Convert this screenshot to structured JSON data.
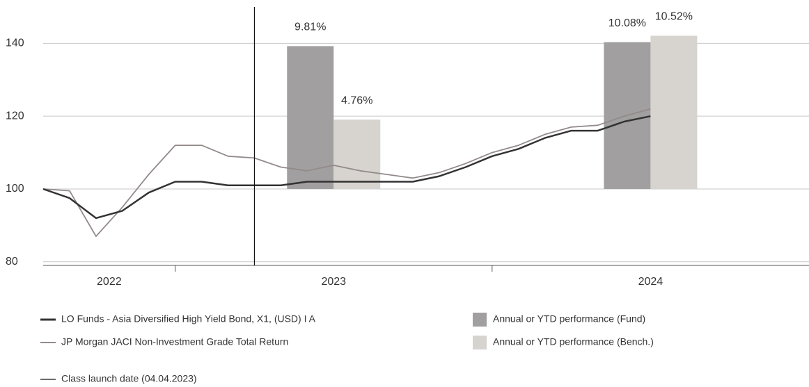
{
  "chart_data": {
    "type": "line",
    "xlim": [
      "2022-08",
      "2025-01"
    ],
    "xticks": [
      "2023-01",
      "2024-01"
    ],
    "x_labels": [
      "2022",
      "2023",
      "2024"
    ],
    "ylim": [
      79,
      150
    ],
    "yticks": [
      80,
      100,
      120,
      140
    ],
    "y2lim": [
      -5.25,
      12.5
    ],
    "grid": true,
    "x": [
      "2022-08",
      "2022-09",
      "2022-10",
      "2022-11",
      "2022-12",
      "2023-01",
      "2023-02",
      "2023-03",
      "2023-04",
      "2023-05",
      "2023-06",
      "2023-07",
      "2023-08",
      "2023-09",
      "2023-10",
      "2023-11",
      "2023-12",
      "2024-01",
      "2024-02",
      "2024-03",
      "2024-04",
      "2024-05",
      "2024-06",
      "2024-07"
    ],
    "series": [
      {
        "name": "LO Funds - Asia Diversified High Yield Bond, X1, (USD) I A",
        "color": "#333333",
        "values": [
          100,
          97.5,
          92,
          94,
          99,
          102,
          102,
          101,
          101,
          101,
          102,
          102,
          102,
          102,
          102,
          103.5,
          106,
          109,
          111,
          114,
          116,
          116,
          118.5,
          120
        ]
      },
      {
        "name": "JP Morgan JACI Non-Investment Grade Total Return",
        "color": "#938a8a",
        "values": [
          100,
          99.5,
          87,
          95,
          104,
          112,
          112,
          109,
          108.5,
          106,
          105,
          106.5,
          105,
          104,
          103,
          104.5,
          107,
          110,
          112,
          115,
          117,
          117.5,
          120,
          122
        ]
      }
    ],
    "bars": {
      "categories": [
        "2023",
        "2024"
      ],
      "series": [
        {
          "name": "Annual or YTD performance (Fund)",
          "color": "#a19f9f",
          "axis": "y2",
          "values": [
            9.81,
            10.08
          ],
          "value_labels": [
            "9.81%",
            "10.08%"
          ]
        },
        {
          "name": "Annual or YTD performance (Bench.)",
          "color": "#d7d3cf",
          "axis": "y2",
          "values": [
            4.76,
            10.52
          ],
          "value_labels": [
            "4.76%",
            "10.52%"
          ]
        }
      ]
    },
    "vline": {
      "x": "2023-04",
      "label": "Class launch date (04.04.2023)"
    }
  }
}
